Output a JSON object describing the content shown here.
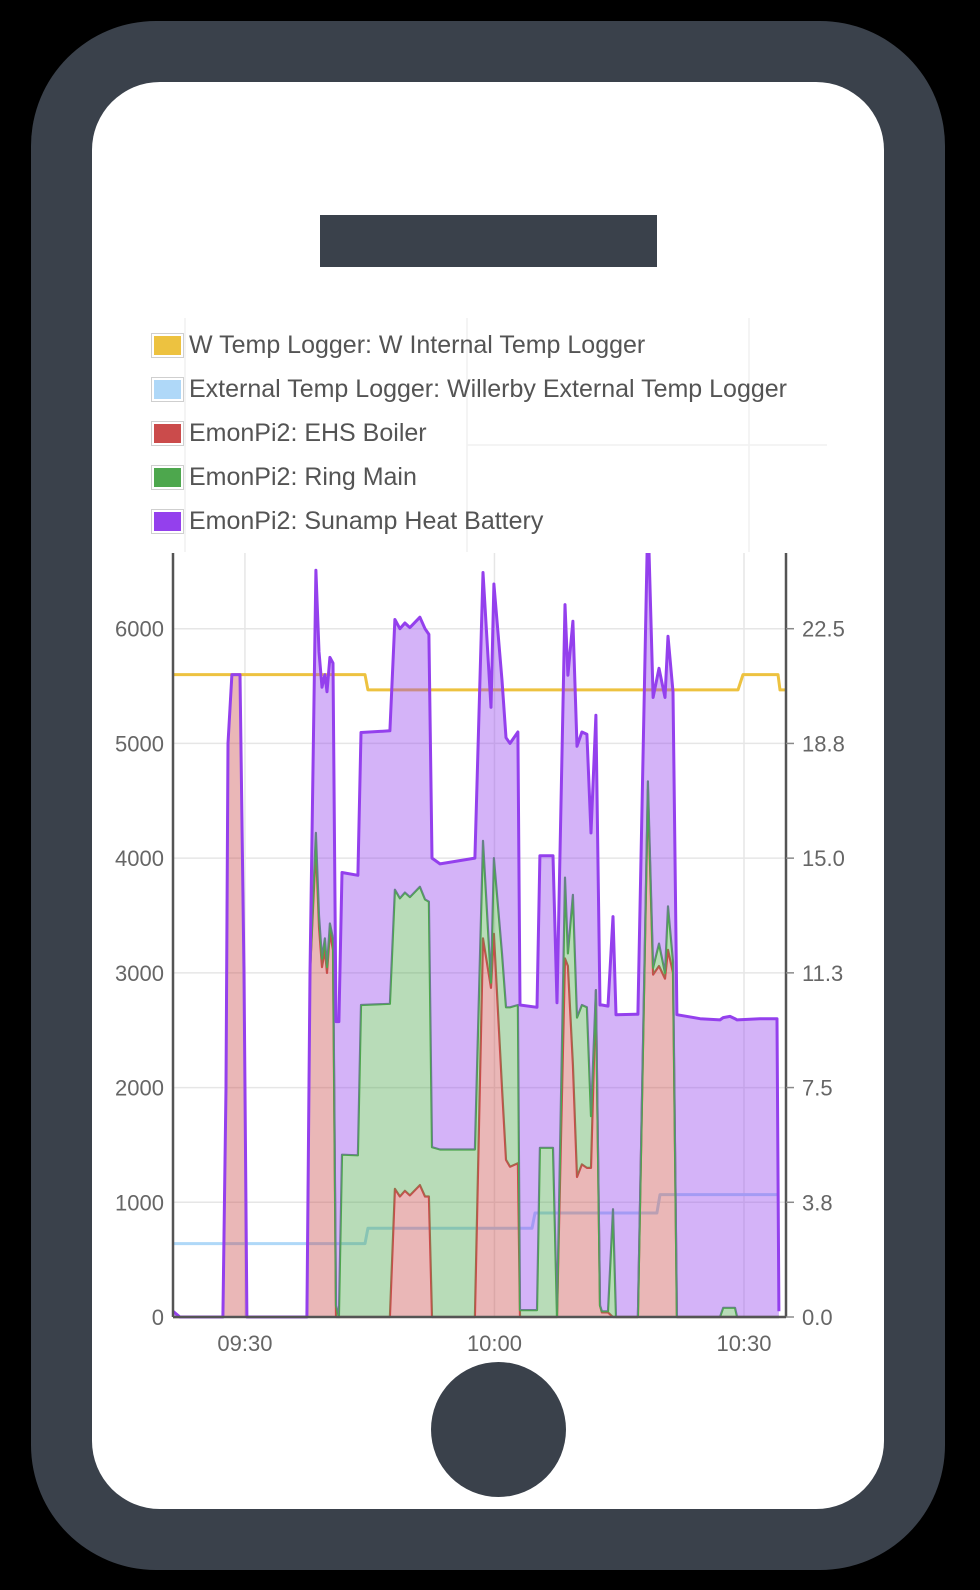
{
  "phone": {
    "frame_color": "#3a414b",
    "screen_color": "#ffffff"
  },
  "legend": {
    "items": [
      {
        "label": "W Temp Logger: W Internal Temp Logger",
        "color": "#edc240"
      },
      {
        "label": "External Temp Logger: Willerby External Temp Logger",
        "color": "#afd8f8"
      },
      {
        "label": "EmonPi2: EHS Boiler",
        "color": "#cb4b4b"
      },
      {
        "label": "EmonPi2: Ring Main",
        "color": "#4da74d"
      },
      {
        "label": "EmonPi2: Sunamp Heat Battery",
        "color": "#9440ed"
      }
    ]
  },
  "chart_data": {
    "type": "area",
    "title": "",
    "xlabel": "",
    "ylabel": "",
    "y2label": "",
    "stacked": true,
    "grid": true,
    "legend_position": "top-left",
    "x_range": [
      "09:21:21",
      "10:35:03"
    ],
    "ylim": [
      0,
      6660
    ],
    "y2lim": [
      0,
      24.975
    ],
    "x_ticks": [
      "09:30",
      "10:00",
      "10:30"
    ],
    "y_ticks": [
      0,
      1000,
      2000,
      3000,
      4000,
      5000,
      6000
    ],
    "y2_tick_values": [
      0,
      3.75,
      7.5,
      11.25,
      15,
      18.75,
      22.5
    ],
    "y2_ticks": [
      "0.0",
      "3.8",
      "7.5",
      "11.3",
      "15.0",
      "18.8",
      "22.5"
    ],
    "x": [
      "09:21:21",
      "09:22:11",
      "09:27:21",
      "09:27:43",
      "09:27:58",
      "09:28:26",
      "09:29:24",
      "09:29:53",
      "09:30:14",
      "09:37:27",
      "09:37:49",
      "09:38:32",
      "09:38:54",
      "09:39:16",
      "09:39:37",
      "09:39:52",
      "09:40:13",
      "09:40:35",
      "09:40:57",
      "09:41:18",
      "09:41:40",
      "09:43:35",
      "09:43:57",
      "09:47:26",
      "09:48:02",
      "09:48:38",
      "09:49:14",
      "09:49:50",
      "09:51:02",
      "09:51:39",
      "09:52:07",
      "09:52:29",
      "09:53:27",
      "09:57:39",
      "09:58:37",
      "09:59:35",
      "09:59:56",
      "10:00:54",
      "10:01:23",
      "10:01:52",
      "10:02:49",
      "10:03:04",
      "10:05:07",
      "10:05:28",
      "10:07:02",
      "10:07:31",
      "10:08:29",
      "10:08:50",
      "10:09:26",
      "10:09:55",
      "10:10:31",
      "10:11:07",
      "10:11:36",
      "10:12:12",
      "10:12:41",
      "10:12:55",
      "10:13:39",
      "10:14:15",
      "10:14:37",
      "10:17:15",
      "10:18:27",
      "10:19:04",
      "10:19:47",
      "10:20:30",
      "10:20:52",
      "10:21:28",
      "10:21:56",
      "10:24:43",
      "10:27:07",
      "10:27:30",
      "10:28:19",
      "10:28:55",
      "10:29:10",
      "10:31:55",
      "10:33:58",
      "10:34:12"
    ],
    "series": [
      {
        "id": "internal-temp",
        "name": "W Temp Logger: W Internal Temp Logger",
        "color": "#edc240",
        "axis": "right",
        "type": "line",
        "points": [
          [
            "09:21:21",
            21.0
          ],
          [
            "09:44:26",
            21.0
          ],
          [
            "09:44:47",
            20.5
          ],
          [
            "10:29:17",
            20.5
          ],
          [
            "10:29:53",
            21.0
          ],
          [
            "10:34:05",
            21.0
          ],
          [
            "10:34:20",
            20.5
          ],
          [
            "10:34:56",
            20.5
          ]
        ]
      },
      {
        "id": "external-temp",
        "name": "External Temp Logger: Willerby External Temp Logger",
        "color": "#afd8f8",
        "axis": "right",
        "type": "line",
        "points": [
          [
            "09:21:21",
            2.4
          ],
          [
            "09:44:26",
            2.4
          ],
          [
            "09:44:47",
            2.9
          ],
          [
            "10:04:31",
            2.9
          ],
          [
            "10:04:52",
            3.4
          ],
          [
            "10:19:32",
            3.4
          ],
          [
            "10:19:54",
            4.0
          ],
          [
            "10:34:05",
            4.0
          ]
        ]
      },
      {
        "id": "ehs-boiler",
        "name": "EmonPi2: EHS Boiler",
        "color": "#cb4b4b",
        "axis": "left",
        "type": "area",
        "stacked": true,
        "values": [
          0,
          0,
          0,
          2000,
          5000,
          5600,
          5600,
          3000,
          0,
          0,
          3000,
          4100,
          3400,
          3050,
          3200,
          3000,
          3350,
          3200,
          0,
          0,
          0,
          0,
          0,
          0,
          1117,
          1050,
          1100,
          1060,
          1150,
          1050,
          1050,
          0,
          0,
          0,
          3300,
          2870,
          3340,
          2000,
          1370,
          1310,
          1340,
          0,
          0,
          0,
          0,
          0,
          3125,
          3060,
          2200,
          1220,
          1330,
          1300,
          1300,
          2850,
          100,
          40,
          40,
          0,
          0,
          0,
          4600,
          2985,
          3060,
          2950,
          3200,
          3000,
          0,
          0,
          0,
          0,
          0,
          0,
          0,
          0,
          0,
          0
        ]
      },
      {
        "id": "ring-main",
        "name": "EmonPi2: Ring Main",
        "color": "#4da74d",
        "axis": "left",
        "type": "area",
        "stacked": true,
        "values": [
          0,
          0,
          0,
          0,
          0,
          0,
          0,
          0,
          0,
          0,
          0,
          120,
          100,
          75,
          100,
          50,
          80,
          100,
          100,
          0,
          1415,
          1410,
          2720,
          2730,
          2608,
          2600,
          2600,
          2600,
          2600,
          2590,
          2570,
          1480,
          1460,
          1460,
          850,
          45,
          660,
          1170,
          1330,
          1390,
          1380,
          60,
          60,
          1475,
          1475,
          0,
          705,
          110,
          1480,
          1390,
          1390,
          1400,
          450,
          0,
          0,
          10,
          10,
          940,
          0,
          0,
          70,
          60,
          195,
          50,
          380,
          100,
          0,
          0,
          0,
          80,
          80,
          80,
          0,
          0,
          0,
          0
        ]
      },
      {
        "id": "sunamp-heat-battery",
        "name": "EmonPi2: Sunamp Heat Battery",
        "color": "#9440ed",
        "axis": "left",
        "type": "area",
        "stacked": true,
        "values": [
          50,
          0,
          0,
          0,
          0,
          0,
          0,
          0,
          0,
          0,
          0,
          2290,
          2300,
          2365,
          2300,
          2400,
          2320,
          2400,
          2475,
          2575,
          2460,
          2440,
          2375,
          2380,
          2355,
          2350,
          2350,
          2350,
          2350,
          2360,
          2330,
          2520,
          2490,
          2540,
          2340,
          2400,
          2390,
          2380,
          2350,
          2300,
          2380,
          2660,
          2640,
          2545,
          2545,
          2740,
          2380,
          2425,
          2385,
          2365,
          2380,
          2380,
          2470,
          2395,
          2620,
          2670,
          2660,
          2550,
          2635,
          2640,
          2350,
          2355,
          2400,
          2400,
          2355,
          2350,
          2635,
          2600,
          2590,
          2530,
          2540,
          2520,
          2590,
          2600,
          2600,
          50
        ]
      }
    ]
  }
}
